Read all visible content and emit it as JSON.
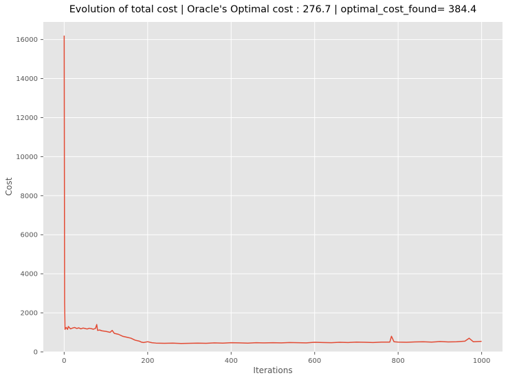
{
  "chart_data": {
    "type": "line",
    "title": "Evolution of total cost | Oracle's Optimal cost : 276.7 | optimal_cost_found= 384.4",
    "xlabel": "Iterations",
    "ylabel": "Cost",
    "xlim": [
      -50,
      1050
    ],
    "ylim": [
      0,
      16900
    ],
    "x_ticks": [
      0,
      200,
      400,
      600,
      800,
      1000
    ],
    "y_ticks": [
      0,
      2000,
      4000,
      6000,
      8000,
      10000,
      12000,
      14000,
      16000
    ],
    "grid": true,
    "line_color": "#E24A33",
    "background_color": "#E5E5E5",
    "series": [
      {
        "x": [
          0,
          1,
          2,
          3,
          5,
          8,
          10,
          15,
          20,
          25,
          30,
          35,
          40,
          45,
          50,
          55,
          60,
          65,
          70,
          75,
          78,
          80,
          85,
          90,
          100,
          110,
          115,
          120,
          130,
          140,
          150,
          160,
          170,
          180,
          185,
          190,
          200,
          210,
          220,
          240,
          260,
          280,
          300,
          320,
          340,
          360,
          380,
          400,
          420,
          440,
          460,
          480,
          500,
          520,
          540,
          560,
          580,
          600,
          620,
          640,
          660,
          680,
          700,
          720,
          740,
          760,
          780,
          784,
          790,
          800,
          820,
          840,
          860,
          880,
          900,
          920,
          940,
          960,
          970,
          980,
          1000
        ],
        "y": [
          16200,
          2500,
          1150,
          1200,
          1250,
          1150,
          1300,
          1180,
          1220,
          1250,
          1200,
          1230,
          1180,
          1220,
          1200,
          1170,
          1210,
          1190,
          1160,
          1200,
          1400,
          1100,
          1120,
          1080,
          1050,
          1000,
          1100,
          950,
          900,
          800,
          750,
          700,
          600,
          550,
          500,
          480,
          520,
          470,
          450,
          440,
          450,
          430,
          440,
          450,
          440,
          460,
          450,
          470,
          460,
          450,
          470,
          460,
          470,
          460,
          480,
          470,
          460,
          490,
          480,
          470,
          490,
          480,
          500,
          490,
          480,
          500,
          500,
          800,
          520,
          500,
          490,
          510,
          520,
          500,
          530,
          510,
          520,
          550,
          700,
          520,
          540
        ]
      }
    ]
  }
}
